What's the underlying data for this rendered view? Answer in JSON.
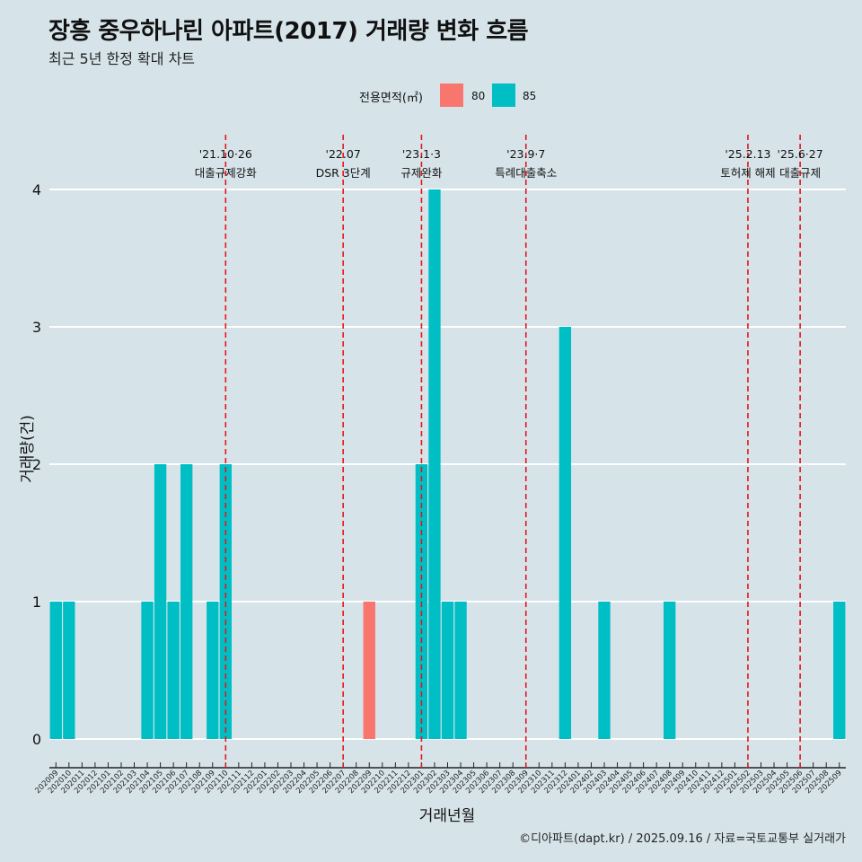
{
  "title": "장흥 중우하나린 아파트(2017) 거래량 변화 흐름",
  "subtitle": "최근 5년 한정 확대 차트",
  "legend": {
    "title": "전용면적(㎡)",
    "items": [
      {
        "label": "80",
        "color": "#f8766d"
      },
      {
        "label": "85",
        "color": "#00bfc4"
      }
    ]
  },
  "caption": "©디아파트(dapt.kr) / 2025.09.16 / 자료=국토교통부 실거래가",
  "chart_data": {
    "type": "bar",
    "stacked": true,
    "xlabel": "거래년월",
    "ylabel": "거래량(건)",
    "ylim": [
      0,
      4
    ],
    "yticks": [
      0,
      1,
      2,
      3,
      4
    ],
    "categories": [
      "202009",
      "202010",
      "202011",
      "202012",
      "202101",
      "202102",
      "202103",
      "202104",
      "202105",
      "202106",
      "202107",
      "202108",
      "202109",
      "202110",
      "202111",
      "202112",
      "202201",
      "202202",
      "202203",
      "202204",
      "202205",
      "202206",
      "202207",
      "202208",
      "202209",
      "202210",
      "202211",
      "202212",
      "202301",
      "202302",
      "202303",
      "202304",
      "202305",
      "202306",
      "202307",
      "202308",
      "202309",
      "202310",
      "202311",
      "202312",
      "202401",
      "202402",
      "202403",
      "202404",
      "202405",
      "202406",
      "202407",
      "202408",
      "202409",
      "202410",
      "202411",
      "202412",
      "202501",
      "202502",
      "202503",
      "202504",
      "202505",
      "202506",
      "202507",
      "202508",
      "202509"
    ],
    "series": [
      {
        "name": "80",
        "color": "#f8766d",
        "values": [
          0,
          0,
          0,
          0,
          0,
          0,
          0,
          0,
          0,
          0,
          0,
          0,
          0,
          0,
          0,
          0,
          0,
          0,
          0,
          0,
          0,
          0,
          0,
          0,
          1,
          0,
          0,
          0,
          0,
          0,
          0,
          0,
          0,
          0,
          0,
          0,
          0,
          0,
          0,
          0,
          0,
          0,
          0,
          0,
          0,
          0,
          0,
          0,
          0,
          0,
          0,
          0,
          0,
          0,
          0,
          0,
          0,
          0,
          0,
          0,
          0
        ]
      },
      {
        "name": "85",
        "color": "#00bfc4",
        "values": [
          1,
          1,
          0,
          0,
          0,
          0,
          0,
          1,
          2,
          1,
          2,
          0,
          1,
          2,
          0,
          0,
          0,
          0,
          0,
          0,
          0,
          0,
          0,
          0,
          0,
          0,
          0,
          0,
          2,
          4,
          1,
          1,
          0,
          0,
          0,
          0,
          0,
          0,
          0,
          3,
          0,
          0,
          1,
          0,
          0,
          0,
          0,
          1,
          0,
          0,
          0,
          0,
          0,
          0,
          0,
          0,
          0,
          0,
          0,
          0,
          1
        ]
      }
    ],
    "annotations": [
      {
        "at": "202110",
        "lines": [
          "'21.10·26",
          "대출규제강화"
        ]
      },
      {
        "at": "202207",
        "lines": [
          "'22.07",
          "DSR 3단계"
        ]
      },
      {
        "at": "202301",
        "lines": [
          "'23.1·3",
          "규제완화"
        ]
      },
      {
        "at": "202309",
        "lines": [
          "'23.9·7",
          "특례대출축소"
        ]
      },
      {
        "at": "202502",
        "lines": [
          "'25.2.13",
          "토허제 해제"
        ]
      },
      {
        "at": "202506",
        "lines": [
          "'25.6·27",
          "대출규제"
        ]
      }
    ],
    "grid": true,
    "legend_position": "top"
  }
}
